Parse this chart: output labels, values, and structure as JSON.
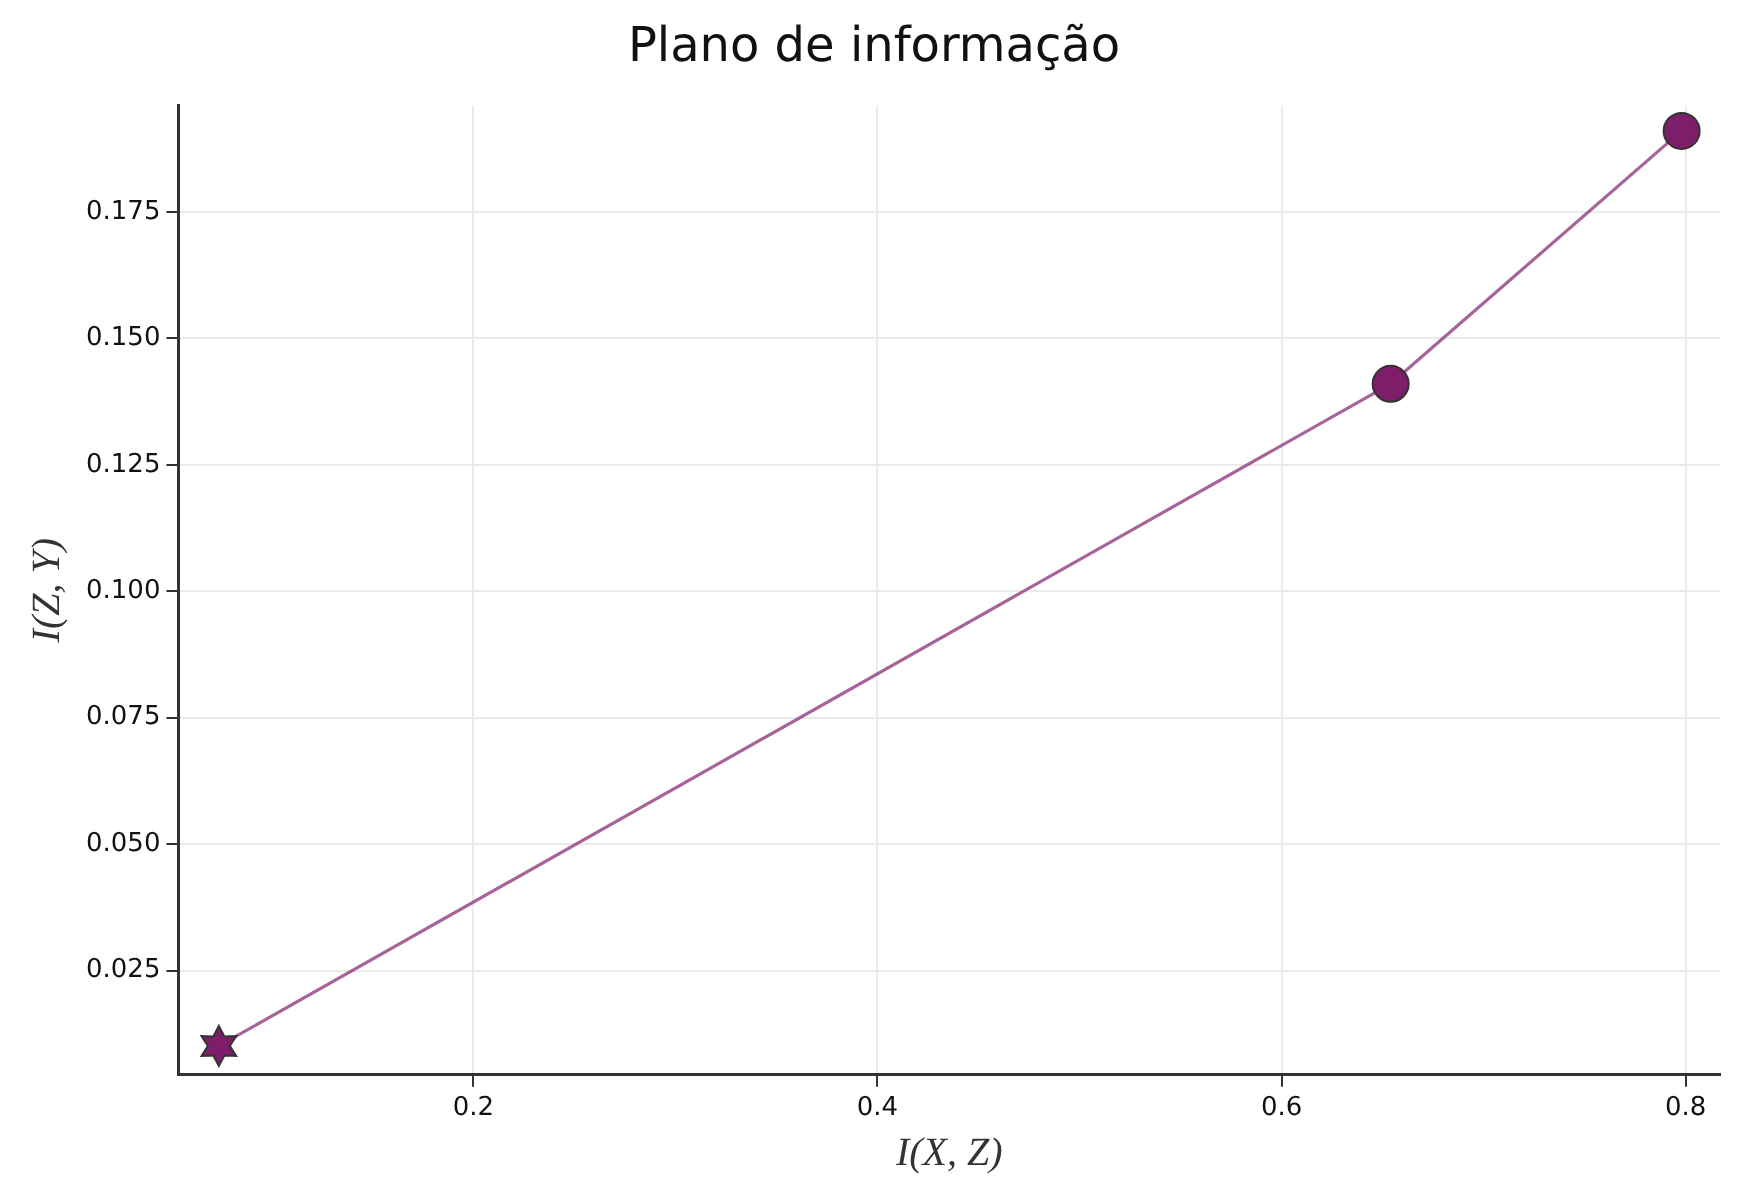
{
  "chart_data": {
    "type": "line",
    "title": "Plano de informação",
    "xlabel": "I(X, Z)",
    "ylabel": "I(Z, Y)",
    "x": [
      0.074,
      0.654,
      0.798
    ],
    "series": [
      {
        "color": "#7e1e6a",
        "values": [
          0.0101,
          0.141,
          0.191
        ]
      }
    ],
    "marker": [
      "star",
      "circle",
      "circle"
    ],
    "xlim": [
      0.054,
      0.817
    ],
    "xticks": [
      0.2,
      0.4,
      0.6,
      0.8
    ],
    "ylim": [
      0.0044,
      0.196
    ],
    "yticks": [
      0.025,
      {
        "value": 0.05,
        "label": "0.050"
      },
      0.075,
      {
        "value": 0.1,
        "label": "0.100"
      },
      0.125,
      {
        "value": 0.15,
        "label": "0.150"
      },
      0.175
    ],
    "grid": true,
    "legend": false
  }
}
